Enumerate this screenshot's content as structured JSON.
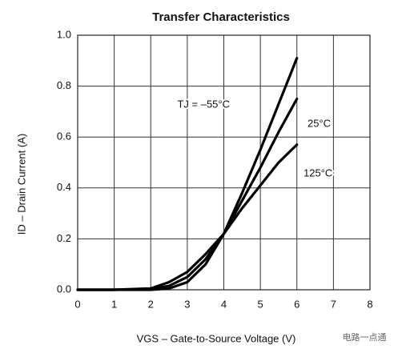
{
  "chart_data": {
    "type": "line",
    "title": "Transfer Characteristics",
    "x_label": "VGS  –  Gate-to-Source Voltage (V)",
    "y_label": "ID – Drain Current (A)",
    "watermark": "电路一点通",
    "x": [
      0,
      1,
      2,
      2.5,
      3,
      3.5,
      4,
      4.5,
      5,
      5.5,
      6
    ],
    "series": [
      {
        "name": "TJ = –55°C",
        "color": "#000000",
        "values": [
          0,
          0,
          0,
          0.005,
          0.03,
          0.1,
          0.22,
          0.38,
          0.55,
          0.73,
          0.91
        ]
      },
      {
        "name": "25°C",
        "color": "#000000",
        "values": [
          0,
          0,
          0.003,
          0.015,
          0.05,
          0.12,
          0.22,
          0.35,
          0.48,
          0.62,
          0.75
        ]
      },
      {
        "name": "125°C",
        "color": "#000000",
        "values": [
          0,
          0,
          0.005,
          0.03,
          0.07,
          0.14,
          0.22,
          0.32,
          0.41,
          0.5,
          0.57
        ]
      }
    ],
    "xlim": [
      0,
      8
    ],
    "xticks": [
      0,
      1,
      2,
      3,
      4,
      5,
      6,
      7,
      8
    ],
    "ylim": [
      0,
      1
    ],
    "yticks": [
      {
        "value": 0,
        "label": "0.0"
      },
      0.2,
      0.4,
      0.6,
      0.8,
      {
        "value": 1,
        "label": "1.0"
      }
    ],
    "grid": true
  }
}
